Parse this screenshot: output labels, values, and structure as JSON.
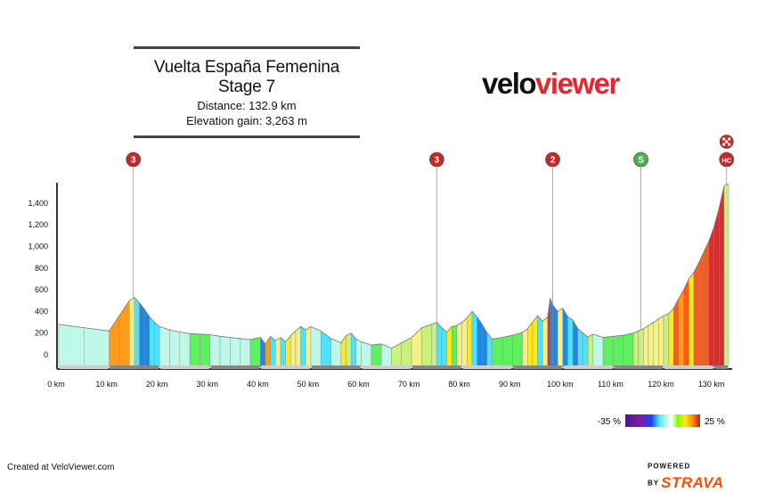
{
  "header": {
    "title": "Vuelta España Femenina Stage 7",
    "distance": "Distance: 132.9 km",
    "elevation": "Elevation gain: 3,263 m"
  },
  "logo": {
    "part1": "velo",
    "part2": "viewer"
  },
  "footer": {
    "credit": "Created at VeloViewer.com",
    "powered": "POWERED BY",
    "brand": "STRAVA"
  },
  "chart_data": {
    "type": "area",
    "xlabel": "",
    "ylabel": "",
    "x_unit": "km",
    "xlim": [
      0,
      132.9
    ],
    "ylim": [
      0,
      1600
    ],
    "yticks": [
      0,
      200,
      400,
      600,
      800,
      1000,
      1200,
      1400
    ],
    "ytick_labels": [
      "0",
      "200",
      "400",
      "600",
      "800",
      "1,000",
      "1,200",
      "1,400"
    ],
    "xticks": [
      0,
      10,
      20,
      30,
      40,
      50,
      60,
      70,
      80,
      90,
      100,
      110,
      120,
      130
    ],
    "xtick_labels": [
      "0 km",
      "10 km",
      "20 km",
      "30 km",
      "40 km",
      "50 km",
      "60 km",
      "70 km",
      "80 km",
      "90 km",
      "100 km",
      "110 km",
      "120 km",
      "130 km"
    ],
    "grid": false,
    "profile": {
      "x": [
        0,
        5,
        10,
        12,
        14,
        15,
        16,
        17,
        18,
        19,
        20,
        22,
        24,
        26,
        28,
        30,
        32,
        34,
        36,
        38,
        40,
        41,
        42,
        43,
        44,
        45,
        46,
        47,
        48,
        49,
        50,
        52,
        54,
        56,
        57,
        58,
        59,
        60,
        62,
        64,
        66,
        68,
        70,
        72,
        74,
        75,
        76,
        77,
        78,
        79,
        80,
        81,
        82,
        83,
        84,
        85,
        86,
        88,
        90,
        92,
        93,
        94,
        95,
        96,
        97,
        97.5,
        98,
        99,
        100,
        101,
        102,
        103,
        104,
        105,
        106,
        108,
        110,
        112,
        114,
        115,
        116,
        117,
        118,
        119,
        120,
        121,
        122,
        123,
        124,
        125,
        126,
        127,
        128,
        129,
        130,
        131,
        132,
        132.9
      ],
      "y": [
        280,
        250,
        220,
        360,
        500,
        530,
        480,
        420,
        350,
        300,
        260,
        230,
        210,
        195,
        190,
        185,
        170,
        160,
        150,
        140,
        160,
        100,
        170,
        130,
        160,
        120,
        175,
        220,
        260,
        230,
        260,
        220,
        150,
        110,
        175,
        200,
        145,
        120,
        90,
        100,
        60,
        110,
        160,
        250,
        280,
        300,
        250,
        210,
        260,
        270,
        300,
        340,
        400,
        350,
        280,
        200,
        145,
        160,
        180,
        205,
        240,
        300,
        360,
        310,
        350,
        520,
        460,
        400,
        430,
        350,
        320,
        240,
        200,
        165,
        190,
        160,
        170,
        180,
        200,
        220,
        240,
        270,
        300,
        330,
        360,
        380,
        430,
        520,
        600,
        700,
        760,
        850,
        950,
        1050,
        1180,
        1350,
        1560,
        1580
      ]
    },
    "climbs": [
      {
        "label": "3",
        "km": 14.8,
        "color": "#c62828"
      },
      {
        "label": "3",
        "km": 75,
        "color": "#c62828"
      },
      {
        "label": "2",
        "km": 98,
        "color": "#c62828"
      },
      {
        "label": "S",
        "km": 115.5,
        "color": "#4caf50"
      },
      {
        "label": "HC",
        "km": 132.5,
        "color": "#c62828"
      }
    ],
    "gradient_legend": {
      "min_label": "-35 %",
      "max_label": "25 %"
    }
  }
}
